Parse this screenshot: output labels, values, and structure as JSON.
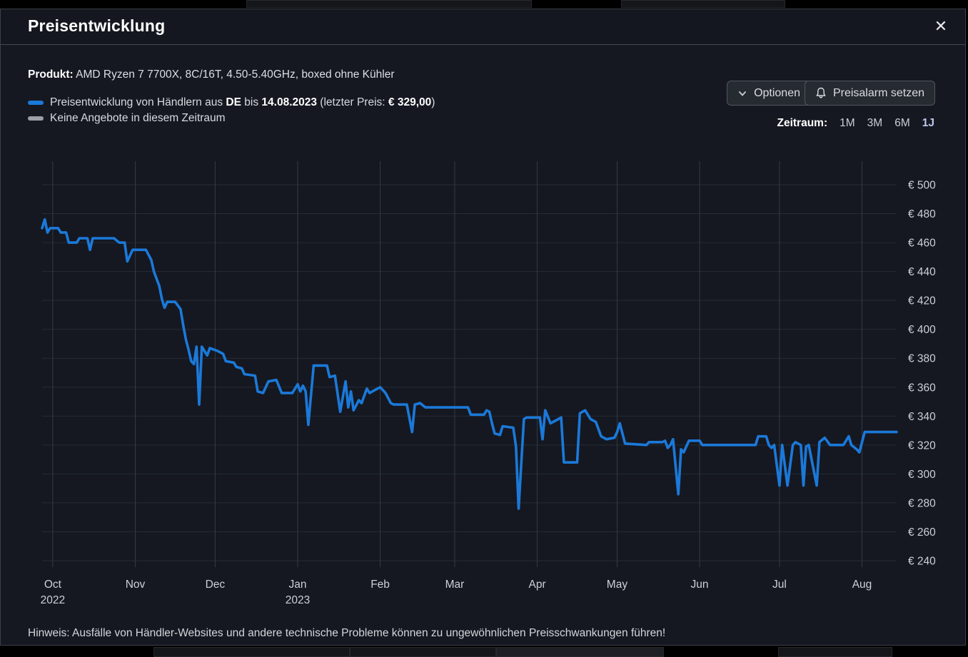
{
  "window": {
    "title": "Preisentwicklung",
    "close_icon": "close-x"
  },
  "product": {
    "label": "Produkt:",
    "value": " AMD Ryzen 7 7700X, 8C/16T, 4.50-5.40GHz, boxed ohne Kühler"
  },
  "legend": {
    "series": {
      "color": "#1b79d9",
      "parts": [
        {
          "text": "Preisentwicklung von Händlern aus ",
          "bold": false
        },
        {
          "text": "DE",
          "bold": true
        },
        {
          "text": " bis ",
          "bold": false
        },
        {
          "text": "14.08.2023",
          "bold": true
        },
        {
          "text": " (letzter Preis: ",
          "bold": false
        },
        {
          "text": "€ 329,00",
          "bold": true
        },
        {
          "text": ")",
          "bold": false
        }
      ]
    },
    "no_offers": {
      "color": "#9aa0a6",
      "text": "Keine Angebote in diesem Zeitraum"
    }
  },
  "toolbar": {
    "options_label": "Optionen",
    "alarm_label": "Preisalarm setzen"
  },
  "zeitraum": {
    "label": "Zeitraum:",
    "options": [
      "1M",
      "3M",
      "6M",
      "1J"
    ],
    "active": "1J"
  },
  "footnote": "Hinweis: Ausfälle von Händler-Websites und andere technische Probleme können zu ungewöhnlichen Preisschwankungen führen!",
  "chart_data": {
    "type": "line",
    "title": "Preisentwicklung AMD Ryzen 7 7700X",
    "x_domain": [
      "2022-09-27",
      "2023-08-14"
    ],
    "ylim": [
      240,
      500
    ],
    "y_tick_prefix": "€ ",
    "y_ticks": [
      240,
      260,
      280,
      300,
      320,
      340,
      360,
      380,
      400,
      420,
      440,
      460,
      480,
      500
    ],
    "y_axis_position": "right",
    "grid": true,
    "x_ticks": [
      {
        "label": "Oct",
        "year": "2022",
        "date": "2022-10-01"
      },
      {
        "label": "Nov",
        "year": "",
        "date": "2022-11-01"
      },
      {
        "label": "Dec",
        "year": "",
        "date": "2022-12-01"
      },
      {
        "label": "Jan",
        "year": "2023",
        "date": "2023-01-01"
      },
      {
        "label": "Feb",
        "year": "",
        "date": "2023-02-01"
      },
      {
        "label": "Mar",
        "year": "",
        "date": "2023-03-01"
      },
      {
        "label": "Apr",
        "year": "",
        "date": "2023-04-01"
      },
      {
        "label": "May",
        "year": "",
        "date": "2023-05-01"
      },
      {
        "label": "Jun",
        "year": "",
        "date": "2023-06-01"
      },
      {
        "label": "Jul",
        "year": "",
        "date": "2023-07-01"
      },
      {
        "label": "Aug",
        "year": "",
        "date": "2023-08-01"
      }
    ],
    "series": [
      {
        "name": "Preisentwicklung von Händlern aus DE bis 14.08.2023 (letzter Preis: € 329,00)",
        "color": "#1b79d9",
        "last_price": "€ 329,00",
        "points": [
          [
            "2022-09-27",
            470
          ],
          [
            "2022-09-28",
            476
          ],
          [
            "2022-09-29",
            467
          ],
          [
            "2022-09-30",
            470
          ],
          [
            "2022-10-03",
            470
          ],
          [
            "2022-10-04",
            467
          ],
          [
            "2022-10-06",
            467
          ],
          [
            "2022-10-07",
            460
          ],
          [
            "2022-10-10",
            460
          ],
          [
            "2022-10-11",
            463
          ],
          [
            "2022-10-14",
            463
          ],
          [
            "2022-10-15",
            455
          ],
          [
            "2022-10-16",
            463
          ],
          [
            "2022-10-24",
            463
          ],
          [
            "2022-10-26",
            460
          ],
          [
            "2022-10-28",
            460
          ],
          [
            "2022-10-29",
            447
          ],
          [
            "2022-10-31",
            455
          ],
          [
            "2022-11-05",
            455
          ],
          [
            "2022-11-07",
            448
          ],
          [
            "2022-11-08",
            440
          ],
          [
            "2022-11-10",
            430
          ],
          [
            "2022-11-11",
            421
          ],
          [
            "2022-11-12",
            415
          ],
          [
            "2022-11-13",
            419
          ],
          [
            "2022-11-16",
            419
          ],
          [
            "2022-11-18",
            414
          ],
          [
            "2022-11-19",
            403
          ],
          [
            "2022-11-20",
            393
          ],
          [
            "2022-11-21",
            386
          ],
          [
            "2022-11-22",
            378
          ],
          [
            "2022-11-23",
            376
          ],
          [
            "2022-11-24",
            388
          ],
          [
            "2022-11-25",
            348
          ],
          [
            "2022-11-26",
            388
          ],
          [
            "2022-11-28",
            382
          ],
          [
            "2022-11-29",
            387
          ],
          [
            "2022-12-02",
            385
          ],
          [
            "2022-12-04",
            383
          ],
          [
            "2022-12-05",
            378
          ],
          [
            "2022-12-08",
            377
          ],
          [
            "2022-12-09",
            374
          ],
          [
            "2022-12-11",
            373
          ],
          [
            "2022-12-12",
            369
          ],
          [
            "2022-12-16",
            368
          ],
          [
            "2022-12-17",
            357
          ],
          [
            "2022-12-19",
            356
          ],
          [
            "2022-12-21",
            364
          ],
          [
            "2022-12-24",
            365
          ],
          [
            "2022-12-26",
            356
          ],
          [
            "2022-12-30",
            356
          ],
          [
            "2023-01-01",
            362
          ],
          [
            "2023-01-02",
            357
          ],
          [
            "2023-01-03",
            361
          ],
          [
            "2023-01-04",
            357
          ],
          [
            "2023-01-05",
            334
          ],
          [
            "2023-01-07",
            375
          ],
          [
            "2023-01-12",
            375
          ],
          [
            "2023-01-13",
            367
          ],
          [
            "2023-01-15",
            368
          ],
          [
            "2023-01-17",
            343
          ],
          [
            "2023-01-19",
            364
          ],
          [
            "2023-01-20",
            346
          ],
          [
            "2023-01-21",
            357
          ],
          [
            "2023-01-22",
            344
          ],
          [
            "2023-01-24",
            351
          ],
          [
            "2023-01-25",
            349
          ],
          [
            "2023-01-27",
            359
          ],
          [
            "2023-01-28",
            356
          ],
          [
            "2023-01-30",
            358
          ],
          [
            "2023-02-01",
            360
          ],
          [
            "2023-02-03",
            356
          ],
          [
            "2023-02-05",
            349
          ],
          [
            "2023-02-06",
            348
          ],
          [
            "2023-02-11",
            348
          ],
          [
            "2023-02-13",
            329
          ],
          [
            "2023-02-14",
            348
          ],
          [
            "2023-02-16",
            349
          ],
          [
            "2023-02-18",
            346
          ],
          [
            "2023-03-06",
            346
          ],
          [
            "2023-03-07",
            341
          ],
          [
            "2023-03-12",
            341
          ],
          [
            "2023-03-13",
            344
          ],
          [
            "2023-03-14",
            343
          ],
          [
            "2023-03-15",
            335
          ],
          [
            "2023-03-16",
            328
          ],
          [
            "2023-03-18",
            327
          ],
          [
            "2023-03-19",
            333
          ],
          [
            "2023-03-23",
            332
          ],
          [
            "2023-03-24",
            319
          ],
          [
            "2023-03-25",
            276
          ],
          [
            "2023-03-27",
            338
          ],
          [
            "2023-03-28",
            339
          ],
          [
            "2023-04-02",
            339
          ],
          [
            "2023-04-03",
            324
          ],
          [
            "2023-04-04",
            344
          ],
          [
            "2023-04-06",
            335
          ],
          [
            "2023-04-08",
            337
          ],
          [
            "2023-04-10",
            339
          ],
          [
            "2023-04-11",
            308
          ],
          [
            "2023-04-16",
            308
          ],
          [
            "2023-04-17",
            342
          ],
          [
            "2023-04-19",
            344
          ],
          [
            "2023-04-21",
            338
          ],
          [
            "2023-04-23",
            336
          ],
          [
            "2023-04-25",
            326
          ],
          [
            "2023-04-27",
            324
          ],
          [
            "2023-04-30",
            325
          ],
          [
            "2023-05-01",
            329
          ],
          [
            "2023-05-02",
            335
          ],
          [
            "2023-05-04",
            321
          ],
          [
            "2023-05-12",
            320
          ],
          [
            "2023-05-13",
            322
          ],
          [
            "2023-05-18",
            322
          ],
          [
            "2023-05-19",
            323
          ],
          [
            "2023-05-20",
            318
          ],
          [
            "2023-05-21",
            320
          ],
          [
            "2023-05-22",
            324
          ],
          [
            "2023-05-24",
            286
          ],
          [
            "2023-05-25",
            317
          ],
          [
            "2023-05-26",
            315
          ],
          [
            "2023-05-28",
            323
          ],
          [
            "2023-06-01",
            323
          ],
          [
            "2023-06-02",
            320
          ],
          [
            "2023-06-22",
            320
          ],
          [
            "2023-06-23",
            326
          ],
          [
            "2023-06-26",
            326
          ],
          [
            "2023-06-27",
            320
          ],
          [
            "2023-06-28",
            318
          ],
          [
            "2023-06-29",
            320
          ],
          [
            "2023-07-01",
            292
          ],
          [
            "2023-07-02",
            320
          ],
          [
            "2023-07-04",
            292
          ],
          [
            "2023-07-06",
            320
          ],
          [
            "2023-07-07",
            322
          ],
          [
            "2023-07-09",
            320
          ],
          [
            "2023-07-10",
            292
          ],
          [
            "2023-07-11",
            319
          ],
          [
            "2023-07-12",
            320
          ],
          [
            "2023-07-15",
            292
          ],
          [
            "2023-07-16",
            322
          ],
          [
            "2023-07-18",
            325
          ],
          [
            "2023-07-20",
            320
          ],
          [
            "2023-07-25",
            320
          ],
          [
            "2023-07-27",
            326
          ],
          [
            "2023-07-28",
            320
          ],
          [
            "2023-07-30",
            317
          ],
          [
            "2023-07-31",
            315
          ],
          [
            "2023-08-02",
            329
          ],
          [
            "2023-08-14",
            329
          ]
        ]
      }
    ],
    "colors": {
      "grid_h": "#262b34",
      "grid_v": "#343a45",
      "axis_text": "#ccd0d7",
      "background": "#151821"
    }
  }
}
